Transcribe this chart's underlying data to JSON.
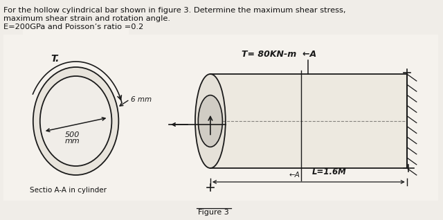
{
  "header_line1": "For the hollow cylindrical bar shown in figure 3. Determine the maximum shear stress,",
  "header_line2": "maximum shear strain and rotation angle.",
  "header_line3": "E=200GPa and Poisson’s ratio =0.2",
  "figure_label": "Figure 3",
  "section_label": "Sectio A-A in cylinder",
  "bg_color": "#f0ede8",
  "paper_color": "#f5f2ed",
  "sketch_color": "#1a1a1a",
  "text_color": "#111111",
  "fig_width": 6.4,
  "fig_height": 3.18
}
